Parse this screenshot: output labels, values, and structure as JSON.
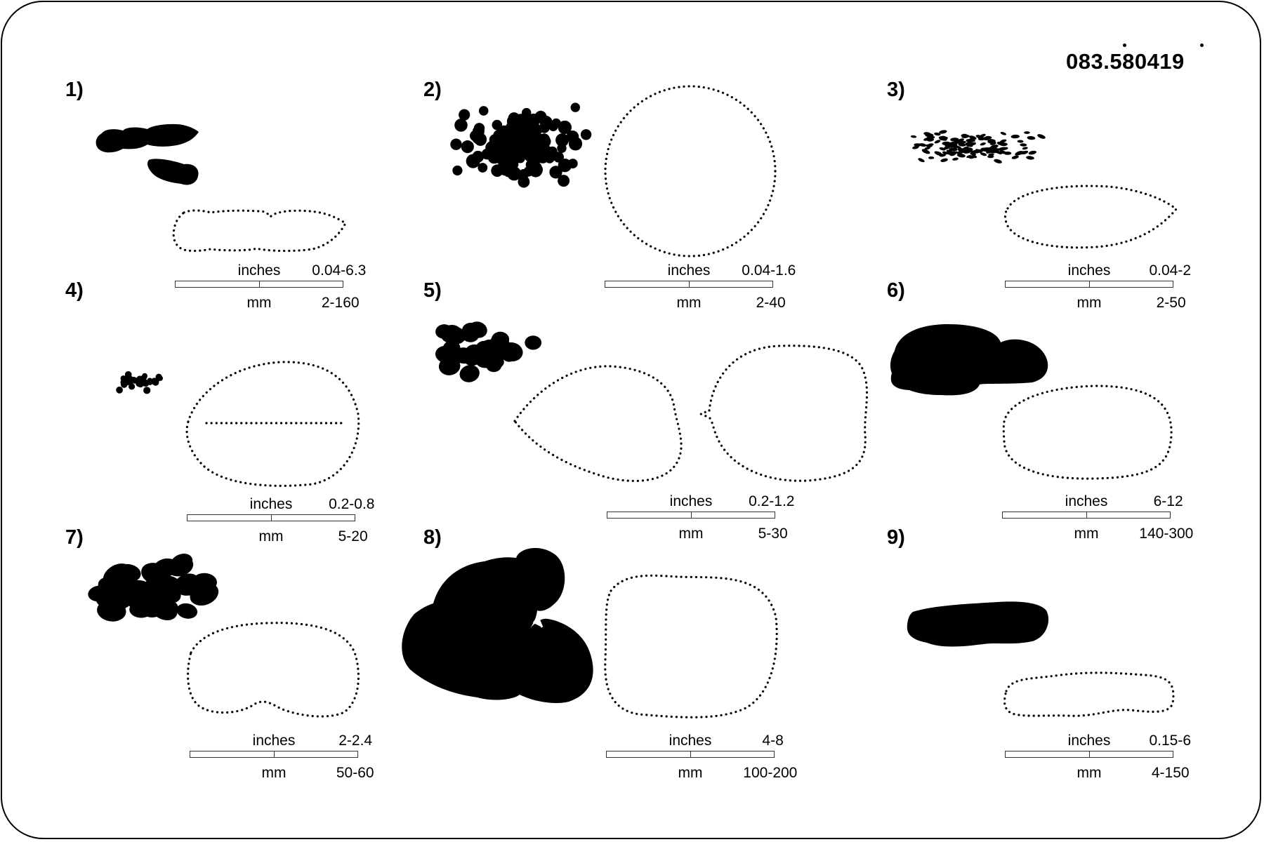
{
  "code": "083.580419",
  "panels": [
    {
      "label": "1)",
      "inches_label": "inches",
      "inches_range": "0.04-6.3",
      "mm_label": "mm",
      "mm_range": "2-160"
    },
    {
      "label": "2)",
      "inches_label": "inches",
      "inches_range": "0.04-1.6",
      "mm_label": "mm",
      "mm_range": "2-40"
    },
    {
      "label": "3)",
      "inches_label": "inches",
      "inches_range": "0.04-2",
      "mm_label": "mm",
      "mm_range": "2-50"
    },
    {
      "label": "4)",
      "inches_label": "inches",
      "inches_range": "0.2-0.8",
      "mm_label": "mm",
      "mm_range": "5-20"
    },
    {
      "label": "5)",
      "inches_label": "inches",
      "inches_range": "0.2-1.2",
      "mm_label": "mm",
      "mm_range": "5-30"
    },
    {
      "label": "6)",
      "inches_label": "inches",
      "inches_range": "6-12",
      "mm_label": "mm",
      "mm_range": "140-300"
    },
    {
      "label": "7)",
      "inches_label": "inches",
      "inches_range": "2-2.4",
      "mm_label": "mm",
      "mm_range": "50-60"
    },
    {
      "label": "8)",
      "inches_label": "inches",
      "inches_range": "4-8",
      "mm_label": "mm",
      "mm_range": "100-200"
    },
    {
      "label": "9)",
      "inches_label": "inches",
      "inches_range": "0.15-6",
      "mm_label": "mm",
      "mm_range": "4-150"
    }
  ]
}
